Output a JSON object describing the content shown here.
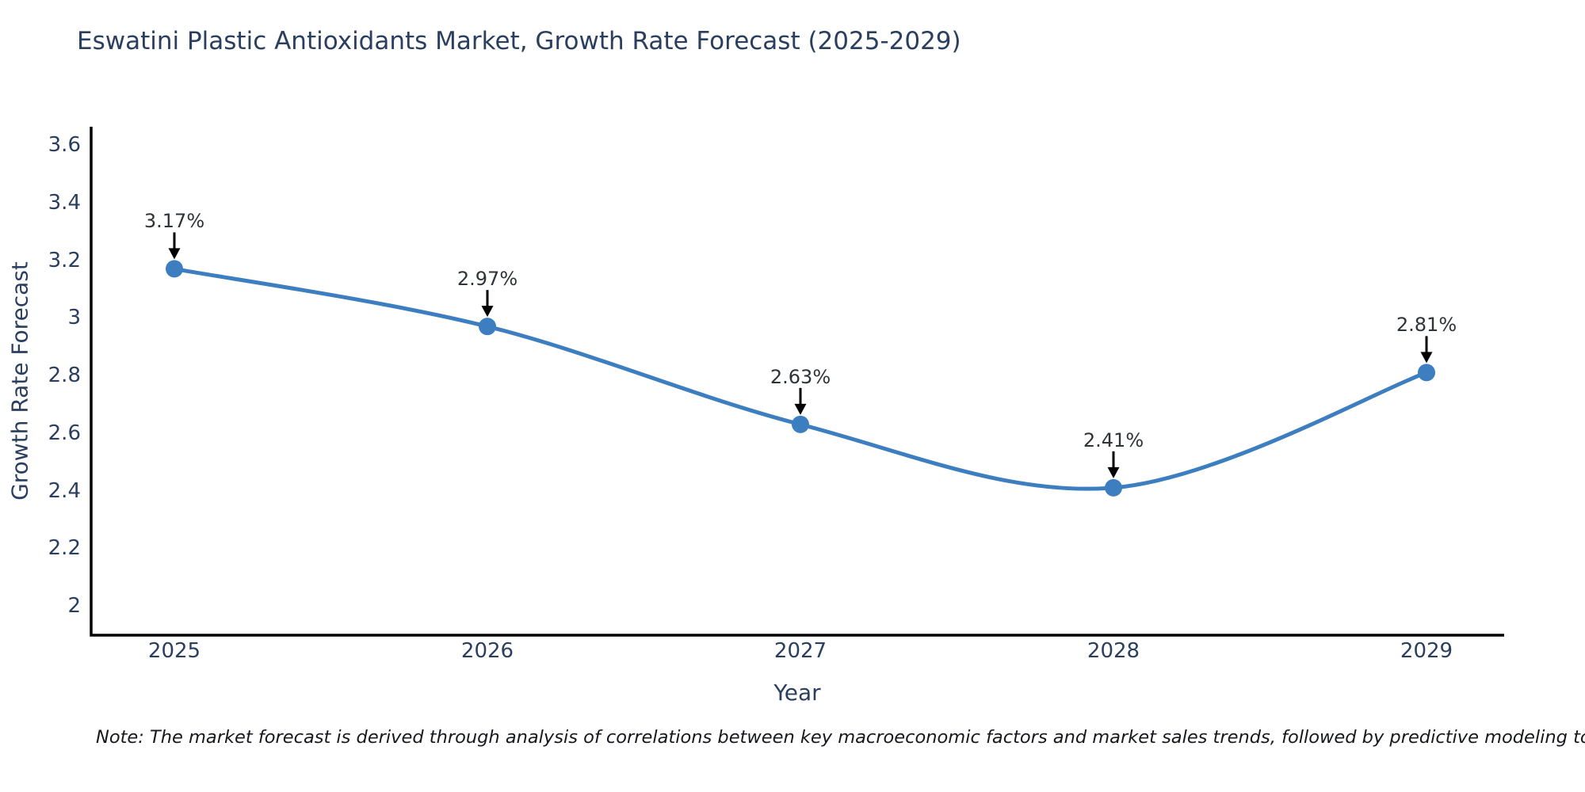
{
  "title": "Eswatini Plastic Antioxidants Market, Growth Rate Forecast (2025-2029)",
  "note": "Note: The market forecast is derived through analysis of correlations between key macroeconomic factors and market sales trends, followed by predictive modeling to project future sales",
  "chart_data": {
    "type": "line",
    "line_shape": "spline",
    "title": "Eswatini Plastic Antioxidants Market, Growth Rate Forecast (2025-2029)",
    "xlabel": "Year",
    "ylabel": "Growth Rate Forecast",
    "x": [
      2025,
      2026,
      2027,
      2028,
      2029
    ],
    "values": [
      3.17,
      2.97,
      2.63,
      2.41,
      2.81
    ],
    "point_labels": [
      "3.17%",
      "2.97%",
      "2.63%",
      "2.41%",
      "2.81%"
    ],
    "x_tick_labels": [
      "2025",
      "2026",
      "2027",
      "2028",
      "2029"
    ],
    "y_ticks": [
      2,
      2.2,
      2.4,
      2.6,
      2.8,
      3,
      3.2,
      3.4,
      3.6
    ],
    "y_tick_labels": [
      "2",
      "2.2",
      "2.4",
      "2.6",
      "2.8",
      "3",
      "3.2",
      "3.4",
      "3.6"
    ],
    "ylim": [
      1.9,
      3.66
    ],
    "grid": false,
    "legend": "none",
    "annotation_arrows": true,
    "colors": {
      "line": "#3c7ebf",
      "marker": "#3c7ebf",
      "axis": "#000000",
      "text": "#2a3f5f",
      "annotation_text": "#2e3338",
      "arrow": "#000000",
      "background": "#ffffff"
    }
  }
}
